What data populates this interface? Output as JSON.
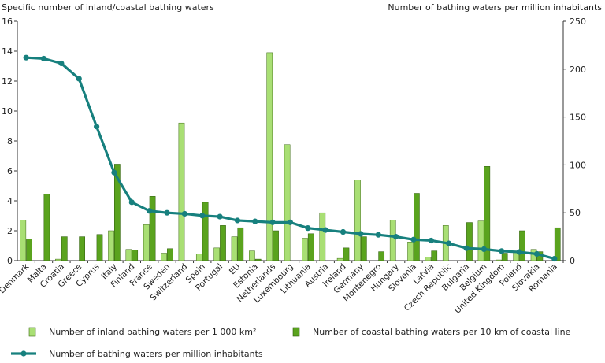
{
  "chart_data": {
    "type": "bar",
    "y_left_label": "Specific number of inland/coastal bathing waters",
    "y_right_label": "Number of bathing waters per million inhabitants",
    "y_left_lim": [
      0,
      16
    ],
    "y_left_ticks": [
      "0",
      "2",
      "4",
      "6",
      "8",
      "10",
      "12",
      "14",
      "16"
    ],
    "y_right_lim": [
      0,
      250
    ],
    "y_right_ticks": [
      "0",
      "50",
      "100",
      "150",
      "200",
      "250"
    ],
    "grid": false,
    "legend_position": "bottom",
    "categories": [
      "Denmark",
      "Malta",
      "Croatia",
      "Greece",
      "Cyprus",
      "Italy",
      "Finland",
      "France",
      "Sweden",
      "Switzerland",
      "Spain",
      "Portugal",
      "EU",
      "Estonia",
      "Netherlands",
      "Luxembourg",
      "Lithuania",
      "Austria",
      "Ireland",
      "Germany",
      "Montenegro",
      "Hungary",
      "Slovenia",
      "Latvia",
      "Czech Republic",
      "Bulgaria",
      "Belgium",
      "United Kingdom",
      "Poland",
      "Slovakia",
      "Romania"
    ],
    "series": [
      {
        "name": "Number of inland bathing waters per 1 000 km²",
        "type": "bar",
        "axis": "left",
        "color": "#a9df74",
        "values": [
          2.7,
          0,
          0.1,
          0,
          0,
          2.0,
          0.75,
          2.4,
          0.5,
          9.2,
          0.45,
          0.85,
          1.6,
          0.65,
          13.9,
          7.75,
          1.5,
          3.2,
          0.15,
          5.4,
          0,
          2.7,
          1.25,
          0.25,
          2.35,
          0,
          2.65,
          0.05,
          0.65,
          0.75,
          0
        ]
      },
      {
        "name": "Number of coastal bathing waters per 10 km of coastal line",
        "type": "bar",
        "axis": "left",
        "color": "#5aa31e",
        "values": [
          1.45,
          4.45,
          1.6,
          1.6,
          1.75,
          6.45,
          0.7,
          4.3,
          0.8,
          0,
          3.9,
          2.35,
          2.2,
          0.1,
          2.0,
          0,
          1.8,
          0,
          0.85,
          1.6,
          0.6,
          0,
          4.5,
          0.65,
          0,
          2.55,
          6.3,
          0.5,
          2.0,
          0.6,
          2.2
        ]
      },
      {
        "name": "Number of bathing waters per million inhabitants",
        "type": "line",
        "axis": "right",
        "color": "#17807e",
        "values": [
          212,
          211,
          206,
          190,
          140,
          92,
          61,
          52,
          50,
          49,
          47,
          46,
          42,
          41,
          40,
          40,
          34,
          32,
          30,
          28,
          27,
          25,
          22,
          21,
          18,
          13,
          12,
          10,
          9,
          7,
          2
        ]
      }
    ]
  }
}
